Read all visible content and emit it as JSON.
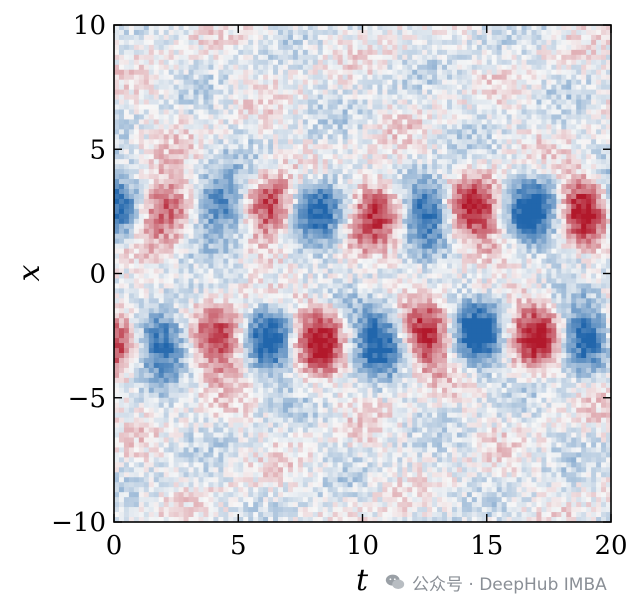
{
  "chart_data": {
    "type": "heatmap",
    "title": "",
    "xlabel": "t",
    "ylabel": "x",
    "xlim": [
      0,
      20
    ],
    "ylim": [
      -10,
      10
    ],
    "xticks": [
      0,
      5,
      10,
      15,
      20
    ],
    "yticks": [
      -10,
      -5,
      0,
      5,
      10
    ],
    "xtick_labels": [
      "0",
      "5",
      "10",
      "15",
      "20"
    ],
    "ytick_labels": [
      "−10",
      "−5",
      "0",
      "5",
      "10"
    ],
    "colormap": "RdBu_r (diverging: blue negative, white zero, red positive)",
    "value_range": [
      -1,
      1
    ],
    "pattern": {
      "upper_band_x": [
        0.6,
        5.2
      ],
      "lower_band_x": [
        -5.2,
        -0.6
      ],
      "upper_band_center": 2.6,
      "lower_band_center": -2.6,
      "oscillation_period_t": 4.2,
      "upper_band_blob_signs_start": "blue then red at t≈2",
      "lower_band_phase": "opposite sign to upper band (antisymmetric in x)",
      "background": "light noisy blue/red speckle"
    },
    "grid": false,
    "legend": "none",
    "colors": {
      "negative": "#2166ac",
      "zero": "#f7f7f7",
      "positive": "#b2182b"
    }
  },
  "watermark": {
    "text": "公众号 · DeepHub IMBA",
    "icon": "wechat-icon"
  }
}
